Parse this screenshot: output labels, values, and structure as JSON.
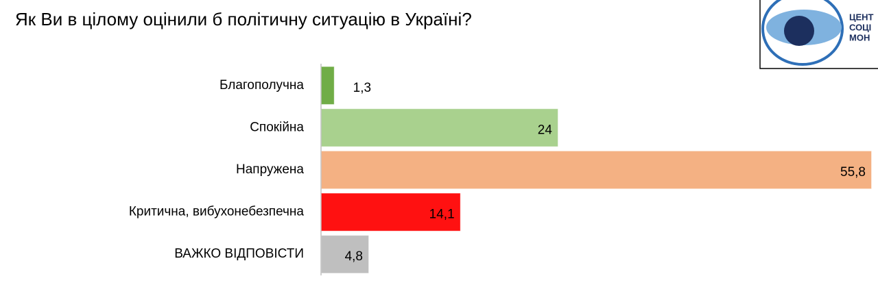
{
  "chart_data": {
    "type": "barh",
    "title": "Як Ви в цілому оцінили б політичну ситуацію в Україні?",
    "categories": [
      "Благополучна",
      "Спокійна",
      "Напружена",
      "Критична, вибухонебезпечна",
      "ВАЖКО ВІДПОВІСТИ"
    ],
    "values": [
      1.3,
      24,
      55.8,
      14.1,
      4.8
    ],
    "value_labels": [
      "1,3",
      "24",
      "55,8",
      "14,1",
      "4,8"
    ],
    "colors": [
      "#70ad47",
      "#a9d18e",
      "#f4b183",
      "#ff1111",
      "#bfbfbf"
    ]
  },
  "logo": {
    "lines": [
      "ЦЕНТ",
      "СОЦІ",
      "МОН"
    ]
  }
}
